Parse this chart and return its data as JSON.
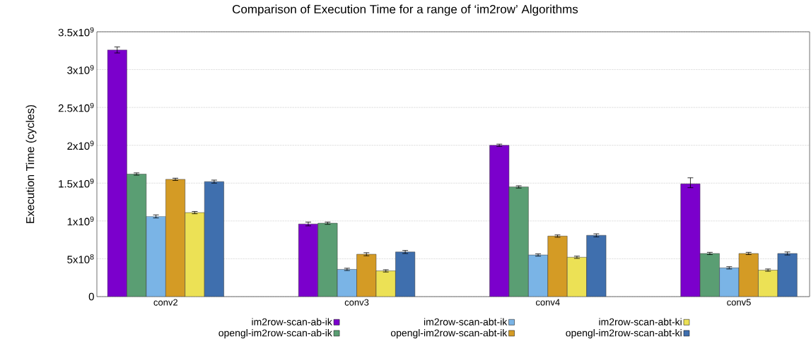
{
  "chart_data": {
    "type": "bar",
    "title": "Comparison of Execution Time for a range of ‘im2row’ Algorithms",
    "ylabel": "Execution Time (cycles)",
    "categories": [
      "conv2",
      "conv3",
      "conv4",
      "conv5"
    ],
    "series": [
      {
        "name": "im2row-scan-ab-ik",
        "color": "#7b00cc",
        "values": [
          3260000000.0,
          960000000.0,
          2000000000.0,
          1490000000.0
        ],
        "errors": [
          40000000.0,
          25000000.0,
          15000000.0,
          [
            1440000000.0,
            1570000000.0
          ]
        ]
      },
      {
        "name": "opengl-im2row-scan-ab-ik",
        "color": "#5a9e73",
        "values": [
          1620000000.0,
          970000000.0,
          1450000000.0,
          570000000.0
        ],
        "errors": [
          15000000.0,
          15000000.0,
          15000000.0,
          15000000.0
        ]
      },
      {
        "name": "im2row-scan-abt-ik",
        "color": "#7ab4e6",
        "values": [
          1060000000.0,
          360000000.0,
          550000000.0,
          380000000.0
        ],
        "errors": [
          20000000.0,
          15000000.0,
          15000000.0,
          15000000.0
        ]
      },
      {
        "name": "opengl-im2row-scan-abt-ik",
        "color": "#d49b25",
        "values": [
          1550000000.0,
          560000000.0,
          800000000.0,
          570000000.0
        ],
        "errors": [
          15000000.0,
          20000000.0,
          15000000.0,
          15000000.0
        ]
      },
      {
        "name": "im2row-scan-abt-ki",
        "color": "#ece155",
        "values": [
          1110000000.0,
          340000000.0,
          520000000.0,
          350000000.0
        ],
        "errors": [
          15000000.0,
          15000000.0,
          15000000.0,
          15000000.0
        ]
      },
      {
        "name": "opengl-im2row-scan-abt-ki",
        "color": "#3f6fae",
        "values": [
          1520000000.0,
          590000000.0,
          810000000.0,
          570000000.0
        ],
        "errors": [
          20000000.0,
          20000000.0,
          20000000.0,
          20000000.0
        ]
      }
    ],
    "ylim": [
      0,
      3500000000.0
    ],
    "yticks": [
      0,
      {
        "value": 500000000.0,
        "label": "5x10$^{8}$"
      },
      {
        "value": 1000000000.0,
        "label": "1x10$^{9}$"
      },
      {
        "value": 1500000000.0,
        "label": "1.5x10$^{9}$"
      },
      {
        "value": 2000000000.0,
        "label": "2x10$^{9}$"
      },
      {
        "value": 2500000000.0,
        "label": "2.5x10$^{9}$"
      },
      {
        "value": 3000000000.0,
        "label": "3x10$^{9}$"
      },
      {
        "value": 3500000000.0,
        "label": "3.5x10$^{9}$"
      }
    ],
    "grid": "y",
    "legend": "bottom"
  }
}
